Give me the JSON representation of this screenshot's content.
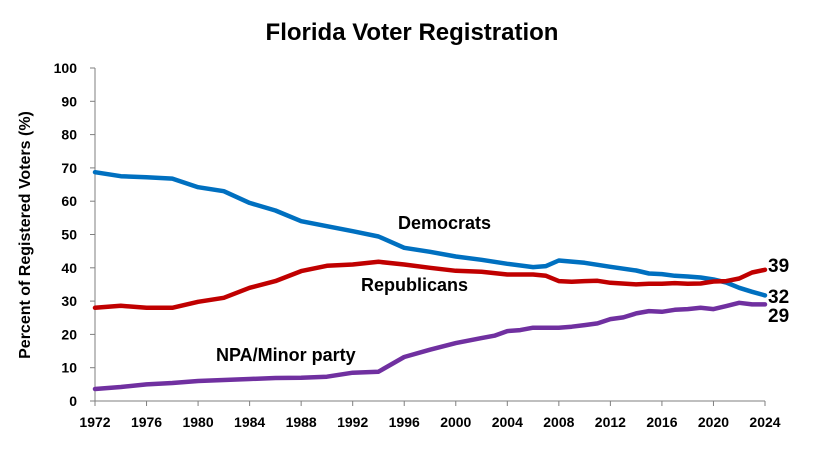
{
  "chart_data": {
    "type": "line",
    "title": "Florida Voter Registration",
    "xlabel": "",
    "ylabel": "Percent of Registered Voters (%)",
    "ylim": [
      0,
      100
    ],
    "yticks": [
      0,
      10,
      20,
      30,
      40,
      50,
      60,
      70,
      80,
      90,
      100
    ],
    "xlim": [
      1972,
      2024
    ],
    "xticks": [
      1972,
      1976,
      1980,
      1984,
      1988,
      1992,
      1996,
      2000,
      2004,
      2008,
      2012,
      2016,
      2020,
      2024
    ],
    "grid": false,
    "series": [
      {
        "name": "Democrats",
        "color": "#0070C0",
        "end_label": "32",
        "x": [
          1972,
          1974,
          1976,
          1978,
          1980,
          1982,
          1984,
          1986,
          1988,
          1990,
          1992,
          1994,
          1996,
          1998,
          2000,
          2002,
          2004,
          2006,
          2007,
          2008,
          2010,
          2012,
          2014,
          2015,
          2016,
          2017,
          2018,
          2019,
          2020,
          2021,
          2022,
          2023,
          2024
        ],
        "values": [
          68.7,
          67.5,
          67.2,
          66.8,
          64.2,
          63.0,
          59.5,
          57.2,
          54.0,
          52.5,
          51.0,
          49.4,
          46.0,
          44.8,
          43.4,
          42.4,
          41.2,
          40.2,
          40.5,
          42.2,
          41.5,
          40.3,
          39.2,
          38.3,
          38.1,
          37.6,
          37.4,
          37.1,
          36.5,
          35.6,
          34.0,
          32.8,
          31.7
        ]
      },
      {
        "name": "Republicans",
        "color": "#C00000",
        "end_label": "39",
        "x": [
          1972,
          1974,
          1976,
          1978,
          1980,
          1982,
          1984,
          1986,
          1988,
          1990,
          1992,
          1994,
          1996,
          1998,
          2000,
          2002,
          2004,
          2006,
          2007,
          2008,
          2009,
          2010,
          2011,
          2012,
          2014,
          2015,
          2016,
          2017,
          2018,
          2019,
          2020,
          2021,
          2022,
          2023,
          2024
        ],
        "values": [
          28.0,
          28.6,
          28.0,
          28.0,
          29.8,
          31.0,
          34.0,
          36.0,
          39.0,
          40.6,
          41.0,
          41.8,
          41.0,
          40.0,
          39.1,
          38.8,
          38.0,
          38.0,
          37.6,
          36.0,
          35.8,
          36.0,
          36.1,
          35.5,
          35.0,
          35.2,
          35.2,
          35.4,
          35.2,
          35.3,
          35.9,
          36.0,
          36.8,
          38.6,
          39.4
        ]
      },
      {
        "name": "NPA/Minor party",
        "color": "#7030A0",
        "end_label": "29",
        "x": [
          1972,
          1974,
          1976,
          1978,
          1980,
          1982,
          1984,
          1986,
          1988,
          1990,
          1992,
          1994,
          1996,
          1998,
          2000,
          2002,
          2003,
          2004,
          2005,
          2006,
          2008,
          2009,
          2010,
          2011,
          2012,
          2013,
          2014,
          2015,
          2016,
          2017,
          2018,
          2019,
          2020,
          2021,
          2022,
          2023,
          2024
        ],
        "values": [
          3.6,
          4.2,
          5.0,
          5.4,
          6.0,
          6.3,
          6.6,
          6.9,
          7.0,
          7.3,
          8.5,
          8.8,
          13.2,
          15.4,
          17.4,
          18.9,
          19.6,
          21.0,
          21.3,
          22.0,
          22.0,
          22.3,
          22.8,
          23.3,
          24.6,
          25.1,
          26.3,
          27.0,
          26.8,
          27.4,
          27.6,
          28.0,
          27.6,
          28.5,
          29.5,
          29.0,
          29.0
        ]
      }
    ],
    "annotations": [
      {
        "text": "Democrats",
        "series": "Democrats"
      },
      {
        "text": "Republicans",
        "series": "Republicans"
      },
      {
        "text": "NPA/Minor party",
        "series": "NPA/Minor party"
      }
    ]
  }
}
